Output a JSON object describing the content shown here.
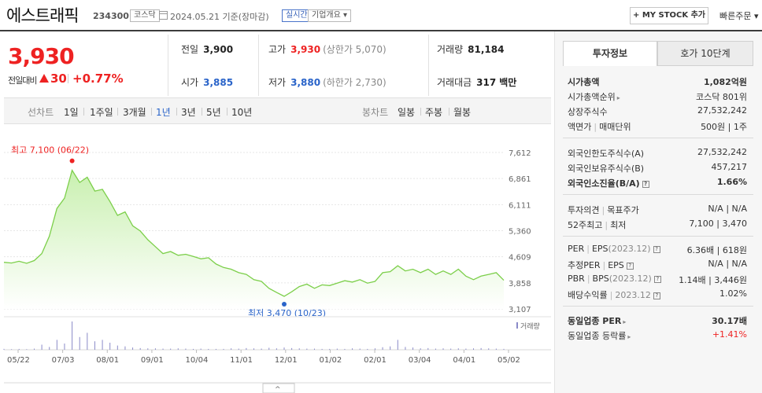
{
  "header": {
    "name": "에스트래픽",
    "code": "234300",
    "market_badge": "코스닥",
    "date_text": "2024.05.21 기준(장마감)",
    "realtime_badge": "실시간",
    "company_badge": "기업개요 ▾",
    "mystock_button": "+ MY STOCK 추가",
    "quick_order": "빠른주문 ▾"
  },
  "summary": {
    "price": "3,930",
    "diff_label": "전일대비",
    "diff_value": "30",
    "diff_pct": "+0.77%",
    "prev_label": "전일",
    "prev": "3,900",
    "high_label": "고가",
    "high": "3,930",
    "upper_limit": "(상한가 5,070)",
    "volume_label": "거래량",
    "volume": "81,184",
    "open_label": "시가",
    "open": "3,885",
    "low_label": "저가",
    "low": "3,880",
    "lower_limit": "(하한가 2,730)",
    "amount_label": "거래대금",
    "amount": "317",
    "amount_unit": "백만"
  },
  "period_bar": {
    "line_label": "선차트",
    "line_periods": [
      "1일",
      "1주일",
      "3개월",
      "1년",
      "3년",
      "5년",
      "10년"
    ],
    "active": "1년",
    "candle_label": "봉차트",
    "candle_periods": [
      "일봉",
      "주봉",
      "월봉"
    ]
  },
  "chart_data": {
    "type": "area",
    "y_ticks": [
      "7,612",
      "6,861",
      "6,111",
      "5,360",
      "4,609",
      "3,858",
      "3,107"
    ],
    "ylim": [
      3107,
      7612
    ],
    "x_labels": [
      "05/22",
      "07/03",
      "08/01",
      "09/01",
      "10/04",
      "11/01",
      "12/01",
      "01/02",
      "02/01",
      "03/04",
      "04/01",
      "05/02"
    ],
    "high_label": "최고 7,100 (06/22)",
    "low_label": "최저 3,470 (10/23)",
    "volume_label": "거래량",
    "colors": {
      "line": "#7ccf4a",
      "fill_top": "#c9f0b0",
      "high": "#e22",
      "low": "#2a64c9"
    },
    "series": [
      {
        "x": "05/22",
        "y": 4450
      },
      {
        "x": "05/27",
        "y": 4430
      },
      {
        "x": "06/01",
        "y": 4480
      },
      {
        "x": "06/05",
        "y": 4420
      },
      {
        "x": "06/08",
        "y": 4500
      },
      {
        "x": "06/12",
        "y": 4700
      },
      {
        "x": "06/15",
        "y": 5200
      },
      {
        "x": "06/18",
        "y": 6000
      },
      {
        "x": "06/20",
        "y": 6300
      },
      {
        "x": "06/22",
        "y": 7100
      },
      {
        "x": "06/24",
        "y": 6750
      },
      {
        "x": "06/26",
        "y": 6900
      },
      {
        "x": "06/28",
        "y": 6500
      },
      {
        "x": "07/01",
        "y": 6550
      },
      {
        "x": "07/03",
        "y": 6200
      },
      {
        "x": "07/06",
        "y": 5800
      },
      {
        "x": "07/09",
        "y": 5900
      },
      {
        "x": "07/12",
        "y": 5500
      },
      {
        "x": "07/16",
        "y": 5350
      },
      {
        "x": "07/20",
        "y": 5100
      },
      {
        "x": "07/24",
        "y": 4900
      },
      {
        "x": "07/28",
        "y": 4700
      },
      {
        "x": "08/01",
        "y": 4760
      },
      {
        "x": "08/06",
        "y": 4650
      },
      {
        "x": "08/10",
        "y": 4680
      },
      {
        "x": "08/15",
        "y": 4620
      },
      {
        "x": "08/20",
        "y": 4550
      },
      {
        "x": "08/25",
        "y": 4580
      },
      {
        "x": "09/01",
        "y": 4400
      },
      {
        "x": "09/06",
        "y": 4300
      },
      {
        "x": "09/11",
        "y": 4250
      },
      {
        "x": "09/16",
        "y": 4150
      },
      {
        "x": "09/22",
        "y": 4100
      },
      {
        "x": "09/27",
        "y": 3950
      },
      {
        "x": "10/04",
        "y": 3900
      },
      {
        "x": "10/10",
        "y": 3700
      },
      {
        "x": "10/16",
        "y": 3580
      },
      {
        "x": "10/23",
        "y": 3470
      },
      {
        "x": "10/28",
        "y": 3600
      },
      {
        "x": "11/01",
        "y": 3750
      },
      {
        "x": "11/08",
        "y": 3820
      },
      {
        "x": "11/15",
        "y": 3700
      },
      {
        "x": "11/22",
        "y": 3800
      },
      {
        "x": "12/01",
        "y": 3780
      },
      {
        "x": "12/08",
        "y": 3850
      },
      {
        "x": "12/15",
        "y": 3920
      },
      {
        "x": "12/22",
        "y": 3880
      },
      {
        "x": "01/02",
        "y": 3950
      },
      {
        "x": "01/09",
        "y": 3850
      },
      {
        "x": "01/16",
        "y": 3900
      },
      {
        "x": "01/23",
        "y": 4150
      },
      {
        "x": "02/01",
        "y": 4180
      },
      {
        "x": "02/08",
        "y": 4350
      },
      {
        "x": "02/15",
        "y": 4200
      },
      {
        "x": "02/22",
        "y": 4250
      },
      {
        "x": "03/04",
        "y": 4150
      },
      {
        "x": "03/11",
        "y": 4250
      },
      {
        "x": "03/18",
        "y": 4100
      },
      {
        "x": "03/25",
        "y": 4200
      },
      {
        "x": "04/01",
        "y": 4100
      },
      {
        "x": "04/08",
        "y": 4250
      },
      {
        "x": "04/15",
        "y": 4050
      },
      {
        "x": "04/22",
        "y": 3950
      },
      {
        "x": "05/02",
        "y": 4050
      },
      {
        "x": "05/09",
        "y": 4100
      },
      {
        "x": "05/16",
        "y": 4150
      },
      {
        "x": "05/21",
        "y": 3930
      }
    ],
    "volume": [
      0.03,
      0.02,
      0.03,
      0.02,
      0.04,
      0.18,
      0.1,
      0.35,
      0.22,
      1.0,
      0.45,
      0.6,
      0.3,
      0.35,
      0.25,
      0.15,
      0.12,
      0.08,
      0.06,
      0.05,
      0.05,
      0.04,
      0.04,
      0.05,
      0.04,
      0.03,
      0.04,
      0.03,
      0.03,
      0.03,
      0.05,
      0.04,
      0.06,
      0.05,
      0.04,
      0.07,
      0.05,
      0.08,
      0.06,
      0.05,
      0.04,
      0.04,
      0.03,
      0.03,
      0.04,
      0.03,
      0.05,
      0.04,
      0.03,
      0.05,
      0.09,
      0.12,
      0.35,
      0.1,
      0.08,
      0.05,
      0.06,
      0.04,
      0.05,
      0.04,
      0.05,
      0.04,
      0.05,
      0.06,
      0.05,
      0.04,
      0.03
    ]
  },
  "right_panel": {
    "tab_info": "투자정보",
    "tab_hoga": "호가 10단계",
    "market_cap_label": "시가총액",
    "market_cap": "1,082억원",
    "rank_label": "시가총액순위",
    "rank": "코스닥 801위",
    "shares_label": "상장주식수",
    "shares": "27,532,242",
    "par_label": "액면가",
    "unit_label": "매매단위",
    "par_unit": "500원 | 1주",
    "foreign_limit_label": "외국인한도주식수(A)",
    "foreign_limit": "27,532,242",
    "foreign_own_label": "외국인보유주식수(B)",
    "foreign_own": "457,217",
    "foreign_ratio_label": "외국인소진율(B/A)",
    "foreign_ratio": "1.66%",
    "opinion_label": "투자의견",
    "target_label": "목표주가",
    "opinion_target": "N/A | N/A",
    "w52_label": "52주최고",
    "w52_low_label": "최저",
    "w52": "7,100 | 3,470",
    "per_label": "PER",
    "eps_label": "EPS",
    "eps_period": "(2023.12)",
    "per_eps": "6.36배 | 618원",
    "est_per_label": "추정PER",
    "est_eps_label": "EPS",
    "est_per_eps": "N/A | N/A",
    "pbr_label": "PBR",
    "bps_label": "BPS",
    "bps_period": "(2023.12)",
    "pbr_bps": "1.14배 | 3,446원",
    "div_label": "배당수익률",
    "div_period": "2023.12",
    "div": "1.02%",
    "ind_per_label": "동일업종 PER",
    "ind_per": "30.17배",
    "ind_rate_label": "동일업종 등락률",
    "ind_rate": "+1.41%"
  }
}
